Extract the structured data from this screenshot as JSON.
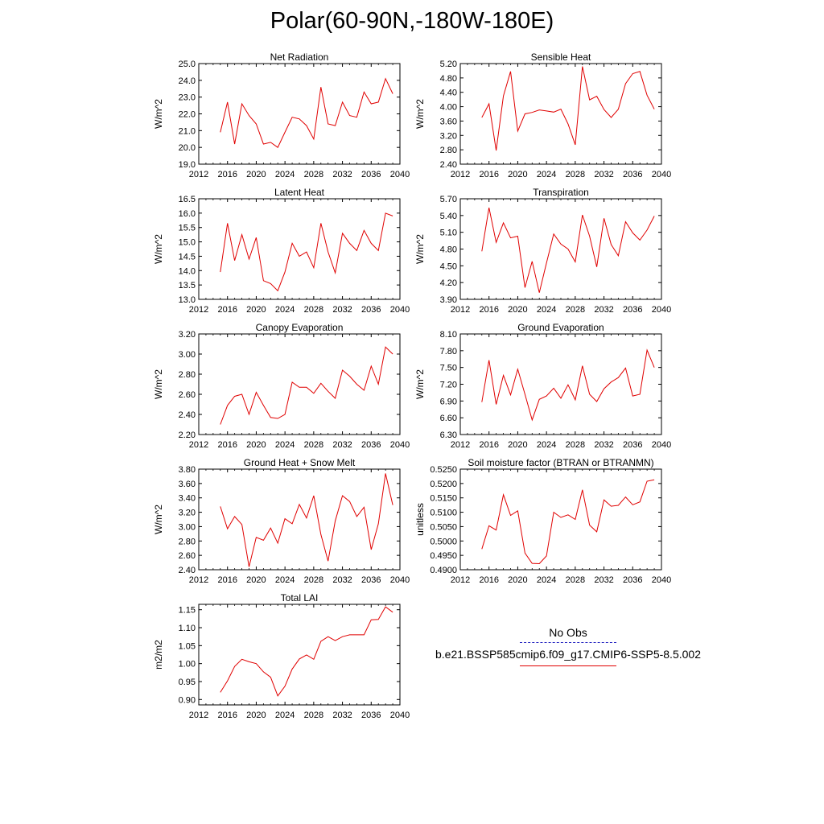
{
  "page": {
    "title": "Polar(60-90N,-180W-180E)"
  },
  "legend": {
    "obs_label": "No Obs",
    "model_label": "b.e21.BSSP585cmip6.f09_g17.CMIP6-SSP5-8.5.002",
    "obs_color": "#2020c0",
    "model_color": "#e00000"
  },
  "chart_data": [
    {
      "type": "line",
      "title": "Net Radiation",
      "ylabel": "W/m^2",
      "xlim": [
        2012,
        2040
      ],
      "ylim": [
        19.0,
        25.0
      ],
      "xticks": [
        "2012",
        "2016",
        "2020",
        "2024",
        "2028",
        "2032",
        "2036",
        "2040"
      ],
      "yticks": [
        "19.0",
        "20.0",
        "21.0",
        "22.0",
        "23.0",
        "24.0",
        "25.0"
      ],
      "series": [
        {
          "color": "#e00000",
          "x": [
            2015,
            2016,
            2017,
            2018,
            2019,
            2020,
            2021,
            2022,
            2023,
            2024,
            2025,
            2026,
            2027,
            2028,
            2029,
            2030,
            2031,
            2032,
            2033,
            2034,
            2035,
            2036,
            2037,
            2038,
            2039
          ],
          "y": [
            20.9,
            22.7,
            20.2,
            22.6,
            21.9,
            21.4,
            20.2,
            20.3,
            20.0,
            20.9,
            21.8,
            21.7,
            21.3,
            20.5,
            23.6,
            21.4,
            21.3,
            22.7,
            21.9,
            21.8,
            23.3,
            22.6,
            22.7,
            24.1,
            23.2
          ]
        }
      ]
    },
    {
      "type": "line",
      "title": "Sensible Heat",
      "ylabel": "W/m^2",
      "xlim": [
        2012,
        2040
      ],
      "ylim": [
        2.4,
        5.2
      ],
      "xticks": [
        "2012",
        "2016",
        "2020",
        "2024",
        "2028",
        "2032",
        "2036",
        "2040"
      ],
      "yticks": [
        "2.40",
        "2.80",
        "3.20",
        "3.60",
        "4.00",
        "4.40",
        "4.80",
        "5.20"
      ],
      "series": [
        {
          "color": "#e00000",
          "x": [
            2015,
            2016,
            2017,
            2018,
            2019,
            2020,
            2021,
            2022,
            2023,
            2024,
            2025,
            2026,
            2027,
            2028,
            2029,
            2030,
            2031,
            2032,
            2033,
            2034,
            2035,
            2036,
            2037,
            2038,
            2039
          ],
          "y": [
            3.7,
            4.08,
            2.78,
            4.3,
            4.98,
            3.32,
            3.8,
            3.84,
            3.91,
            3.88,
            3.85,
            3.93,
            3.52,
            2.94,
            5.12,
            4.19,
            4.29,
            3.92,
            3.7,
            3.93,
            4.64,
            4.92,
            4.98,
            4.32,
            3.93
          ]
        }
      ]
    },
    {
      "type": "line",
      "title": "Latent Heat",
      "ylabel": "W/m^2",
      "xlim": [
        2012,
        2040
      ],
      "ylim": [
        13.0,
        16.5
      ],
      "xticks": [
        "2012",
        "2016",
        "2020",
        "2024",
        "2028",
        "2032",
        "2036",
        "2040"
      ],
      "yticks": [
        "13.0",
        "13.5",
        "14.0",
        "14.5",
        "15.0",
        "15.5",
        "16.0",
        "16.5"
      ],
      "series": [
        {
          "color": "#e00000",
          "x": [
            2015,
            2016,
            2017,
            2018,
            2019,
            2020,
            2021,
            2022,
            2023,
            2024,
            2025,
            2026,
            2027,
            2028,
            2029,
            2030,
            2031,
            2032,
            2033,
            2034,
            2035,
            2036,
            2037,
            2038,
            2039
          ],
          "y": [
            13.95,
            15.65,
            14.35,
            15.25,
            14.4,
            15.15,
            13.65,
            13.55,
            13.3,
            13.95,
            14.95,
            14.5,
            14.65,
            14.1,
            15.65,
            14.65,
            13.92,
            15.3,
            14.95,
            14.7,
            15.4,
            14.95,
            14.7,
            16.0,
            15.9
          ]
        }
      ]
    },
    {
      "type": "line",
      "title": "Transpiration",
      "ylabel": "W/m^2",
      "xlim": [
        2012,
        2040
      ],
      "ylim": [
        3.9,
        5.7
      ],
      "xticks": [
        "2012",
        "2016",
        "2020",
        "2024",
        "2028",
        "2032",
        "2036",
        "2040"
      ],
      "yticks": [
        "3.90",
        "4.20",
        "4.50",
        "4.80",
        "5.10",
        "5.40",
        "5.70"
      ],
      "series": [
        {
          "color": "#e00000",
          "x": [
            2015,
            2016,
            2017,
            2018,
            2019,
            2020,
            2021,
            2022,
            2023,
            2024,
            2025,
            2026,
            2027,
            2028,
            2029,
            2030,
            2031,
            2032,
            2033,
            2034,
            2035,
            2036,
            2037,
            2038,
            2039
          ],
          "y": [
            4.76,
            5.54,
            4.92,
            5.27,
            5.0,
            5.03,
            4.11,
            4.58,
            4.02,
            4.55,
            5.07,
            4.89,
            4.8,
            4.57,
            5.41,
            5.03,
            4.48,
            5.35,
            4.88,
            4.68,
            5.29,
            5.09,
            4.96,
            5.14,
            5.39
          ]
        }
      ]
    },
    {
      "type": "line",
      "title": "Canopy Evaporation",
      "ylabel": "W/m^2",
      "xlim": [
        2012,
        2040
      ],
      "ylim": [
        2.2,
        3.2
      ],
      "xticks": [
        "2012",
        "2016",
        "2020",
        "2024",
        "2028",
        "2032",
        "2036",
        "2040"
      ],
      "yticks": [
        "2.20",
        "2.40",
        "2.60",
        "2.80",
        "3.00",
        "3.20"
      ],
      "series": [
        {
          "color": "#e00000",
          "x": [
            2015,
            2016,
            2017,
            2018,
            2019,
            2020,
            2021,
            2022,
            2023,
            2024,
            2025,
            2026,
            2027,
            2028,
            2029,
            2030,
            2031,
            2032,
            2033,
            2034,
            2035,
            2036,
            2037,
            2038,
            2039
          ],
          "y": [
            2.3,
            2.49,
            2.58,
            2.6,
            2.4,
            2.62,
            2.49,
            2.37,
            2.36,
            2.4,
            2.72,
            2.67,
            2.67,
            2.61,
            2.71,
            2.63,
            2.56,
            2.84,
            2.78,
            2.7,
            2.64,
            2.88,
            2.7,
            3.07,
            3.0
          ]
        }
      ]
    },
    {
      "type": "line",
      "title": "Ground Evaporation",
      "ylabel": "W/m^2",
      "xlim": [
        2012,
        2040
      ],
      "ylim": [
        6.3,
        8.1
      ],
      "xticks": [
        "2012",
        "2016",
        "2020",
        "2024",
        "2028",
        "2032",
        "2036",
        "2040"
      ],
      "yticks": [
        "6.30",
        "6.60",
        "6.90",
        "7.20",
        "7.50",
        "7.80",
        "8.10"
      ],
      "series": [
        {
          "color": "#e00000",
          "x": [
            2015,
            2016,
            2017,
            2018,
            2019,
            2020,
            2021,
            2022,
            2023,
            2024,
            2025,
            2026,
            2027,
            2028,
            2029,
            2030,
            2031,
            2032,
            2033,
            2034,
            2035,
            2036,
            2037,
            2038,
            2039
          ],
          "y": [
            6.88,
            7.63,
            6.84,
            7.36,
            7.01,
            7.47,
            7.02,
            6.56,
            6.93,
            6.99,
            7.13,
            6.95,
            7.19,
            6.92,
            7.53,
            7.02,
            6.89,
            7.12,
            7.24,
            7.32,
            7.49,
            6.99,
            7.02,
            7.81,
            7.5
          ]
        }
      ]
    },
    {
      "type": "line",
      "title": "Ground Heat + Snow Melt",
      "ylabel": "W/m^2",
      "xlim": [
        2012,
        2040
      ],
      "ylim": [
        2.4,
        3.8
      ],
      "xticks": [
        "2012",
        "2016",
        "2020",
        "2024",
        "2028",
        "2032",
        "2036",
        "2040"
      ],
      "yticks": [
        "2.40",
        "2.60",
        "2.80",
        "3.00",
        "3.20",
        "3.40",
        "3.60",
        "3.80"
      ],
      "series": [
        {
          "color": "#e00000",
          "x": [
            2015,
            2016,
            2017,
            2018,
            2019,
            2020,
            2021,
            2022,
            2023,
            2024,
            2025,
            2026,
            2027,
            2028,
            2029,
            2030,
            2031,
            2032,
            2033,
            2034,
            2035,
            2036,
            2037,
            2038,
            2039
          ],
          "y": [
            3.28,
            2.97,
            3.14,
            3.03,
            2.44,
            2.85,
            2.81,
            2.98,
            2.77,
            3.11,
            3.04,
            3.31,
            3.12,
            3.43,
            2.89,
            2.52,
            3.08,
            3.43,
            3.35,
            3.14,
            3.27,
            2.68,
            3.04,
            3.74,
            3.3
          ]
        }
      ]
    },
    {
      "type": "line",
      "title": "Soil moisture factor (BTRAN or BTRANMN)",
      "ylabel": "unitless",
      "xlim": [
        2012,
        2040
      ],
      "ylim": [
        0.49,
        0.525
      ],
      "xticks": [
        "2012",
        "2016",
        "2020",
        "2024",
        "2028",
        "2032",
        "2036",
        "2040"
      ],
      "yticks": [
        "0.4900",
        "0.4950",
        "0.5000",
        "0.5050",
        "0.5100",
        "0.5150",
        "0.5200",
        "0.5250"
      ],
      "series": [
        {
          "color": "#e00000",
          "x": [
            2015,
            2016,
            2017,
            2018,
            2019,
            2020,
            2021,
            2022,
            2023,
            2024,
            2025,
            2026,
            2027,
            2028,
            2029,
            2030,
            2031,
            2032,
            2033,
            2034,
            2035,
            2036,
            2037,
            2038,
            2039
          ],
          "y": [
            0.4972,
            0.5053,
            0.5038,
            0.5161,
            0.5089,
            0.5105,
            0.4958,
            0.4922,
            0.4921,
            0.4948,
            0.51,
            0.5082,
            0.5091,
            0.5075,
            0.5178,
            0.5055,
            0.5032,
            0.5143,
            0.5121,
            0.5124,
            0.5153,
            0.5126,
            0.5136,
            0.5208,
            0.5213
          ]
        }
      ]
    },
    {
      "type": "line",
      "title": "Total LAI",
      "ylabel": "m2/m2",
      "xlim": [
        2012,
        2040
      ],
      "ylim": [
        0.885,
        1.165
      ],
      "xticks": [
        "2012",
        "2016",
        "2020",
        "2024",
        "2028",
        "2032",
        "2036",
        "2040"
      ],
      "yticks": [
        "0.90",
        "0.95",
        "1.00",
        "1.05",
        "1.10",
        "1.15"
      ],
      "series": [
        {
          "color": "#e00000",
          "x": [
            2015,
            2016,
            2017,
            2018,
            2019,
            2020,
            2021,
            2022,
            2023,
            2024,
            2025,
            2026,
            2027,
            2028,
            2029,
            2030,
            2031,
            2032,
            2033,
            2034,
            2035,
            2036,
            2037,
            2038,
            2039
          ],
          "y": [
            0.92,
            0.952,
            0.992,
            1.012,
            1.005,
            1.0,
            0.977,
            0.962,
            0.91,
            0.937,
            0.985,
            1.013,
            1.024,
            1.012,
            1.062,
            1.075,
            1.064,
            1.075,
            1.08,
            1.08,
            1.08,
            1.122,
            1.123,
            1.158,
            1.143
          ]
        }
      ]
    }
  ]
}
